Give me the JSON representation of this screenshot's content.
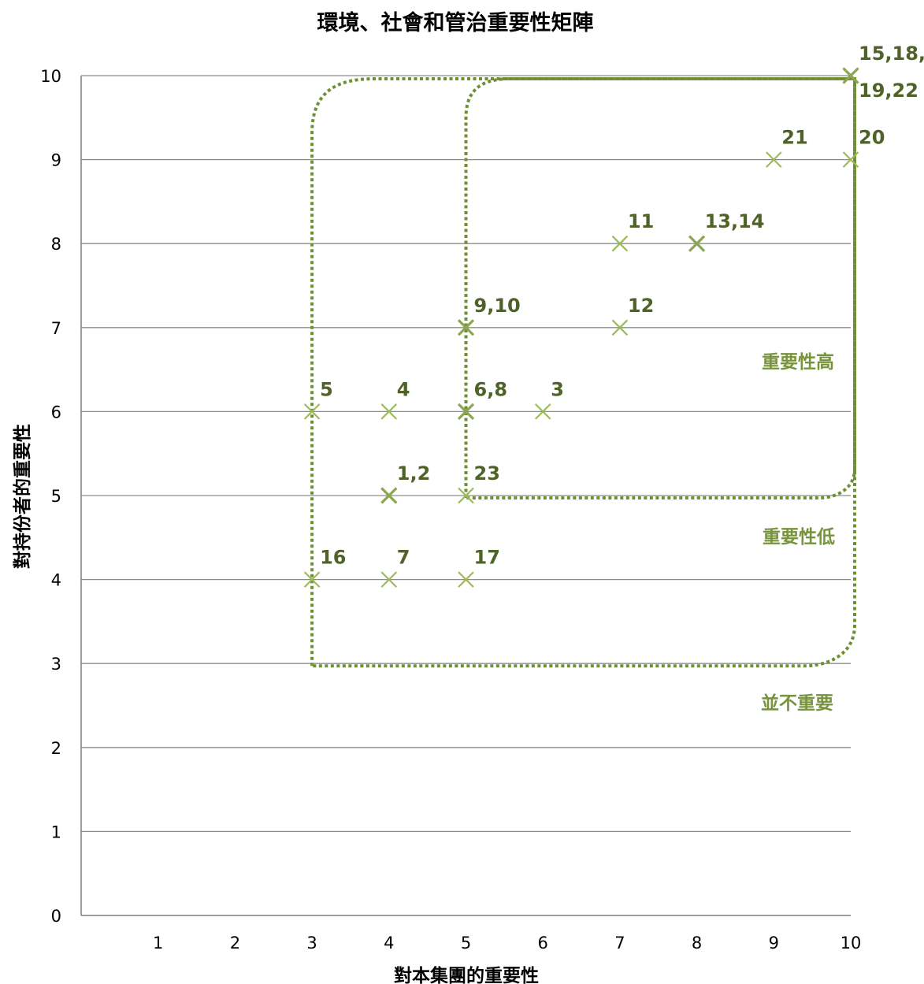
{
  "chart_data": {
    "type": "scatter",
    "title": "環境、社會和管治重要性矩陣",
    "xlabel": "對本集團的重要性",
    "ylabel": "對持份者的重要性",
    "xlim": [
      0,
      10
    ],
    "ylim": [
      0,
      10
    ],
    "x_ticks": [
      1,
      2,
      3,
      4,
      5,
      6,
      7,
      8,
      9,
      10
    ],
    "y_ticks": [
      0,
      1,
      2,
      3,
      4,
      5,
      6,
      7,
      8,
      9,
      10
    ],
    "grid": "horizontal",
    "marker": "x",
    "points": [
      {
        "x": 4,
        "y": 5,
        "label": "1,2"
      },
      {
        "x": 6,
        "y": 6,
        "label": "3"
      },
      {
        "x": 4,
        "y": 6,
        "label": "4"
      },
      {
        "x": 3,
        "y": 6,
        "label": "5"
      },
      {
        "x": 5,
        "y": 6,
        "label": "6,8"
      },
      {
        "x": 4,
        "y": 4,
        "label": "7"
      },
      {
        "x": 5,
        "y": 7,
        "label": "9,10"
      },
      {
        "x": 7,
        "y": 8,
        "label": "11"
      },
      {
        "x": 7,
        "y": 7,
        "label": "12"
      },
      {
        "x": 8,
        "y": 8,
        "label": "13,14"
      },
      {
        "x": 10,
        "y": 10,
        "label": "15,18,\n19,22"
      },
      {
        "x": 3,
        "y": 4,
        "label": "16"
      },
      {
        "x": 5,
        "y": 4,
        "label": "17"
      },
      {
        "x": 10,
        "y": 9,
        "label": "20"
      },
      {
        "x": 9,
        "y": 9,
        "label": "21"
      },
      {
        "x": 5,
        "y": 5,
        "label": "23"
      }
    ],
    "zones": [
      {
        "label": "重要性高",
        "x_min": 5,
        "y_min": 5,
        "x_max": 10,
        "y_max": 10
      },
      {
        "label": "重要性低",
        "x_min": 3,
        "y_min": 3,
        "x_max": 10,
        "y_max": 10
      },
      {
        "label": "並不重要"
      }
    ],
    "colors": {
      "marker": "#9bbb59",
      "point_label": "#4f6228",
      "zone_line": "#6f8f35",
      "zone_label": "#77933c"
    }
  }
}
